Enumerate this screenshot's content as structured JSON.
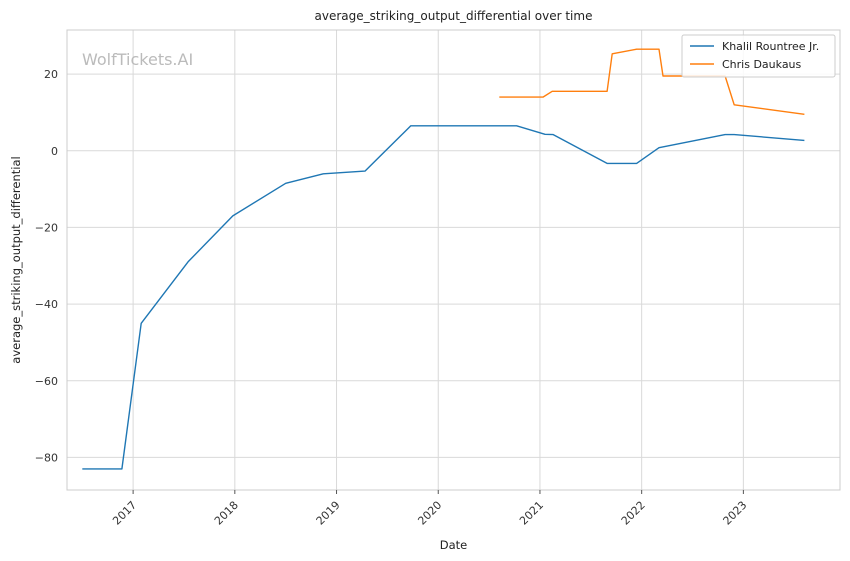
{
  "chart_data": {
    "type": "line",
    "title": "average_striking_output_differential over time",
    "xlabel": "Date",
    "ylabel": "average_striking_output_differential",
    "watermark": "WolfTickets.AI",
    "xlim": [
      2016.35,
      2023.95
    ],
    "ylim": [
      -88.5,
      31.5
    ],
    "x_ticks": [
      {
        "value": 2017,
        "label": "2017"
      },
      {
        "value": 2018,
        "label": "2018"
      },
      {
        "value": 2019,
        "label": "2019"
      },
      {
        "value": 2020,
        "label": "2020"
      },
      {
        "value": 2021,
        "label": "2021"
      },
      {
        "value": 2022,
        "label": "2022"
      },
      {
        "value": 2023,
        "label": "2023"
      }
    ],
    "y_ticks": [
      {
        "value": 20,
        "label": "20"
      },
      {
        "value": 0,
        "label": "0"
      },
      {
        "value": -20,
        "label": "−20"
      },
      {
        "value": -40,
        "label": "−40"
      },
      {
        "value": -60,
        "label": "−60"
      },
      {
        "value": -80,
        "label": "−80"
      }
    ],
    "grid": true,
    "legend_position": "top-right",
    "series": [
      {
        "name": "Khalil Rountree Jr.",
        "color": "#1f77b4",
        "x": [
          2016.5,
          2016.89,
          2017.08,
          2017.54,
          2017.98,
          2018.5,
          2018.87,
          2019.28,
          2019.73,
          2020.77,
          2021.05,
          2021.13,
          2021.66,
          2021.95,
          2022.17,
          2022.82,
          2022.91,
          2023.6
        ],
        "y": [
          -83,
          -83,
          -45,
          -29,
          -17,
          -8.5,
          -6,
          -5.3,
          6.5,
          6.5,
          4.3,
          4.2,
          -3.3,
          -3.3,
          0.8,
          4.2,
          4.2,
          2.7
        ]
      },
      {
        "name": "Chris Daukaus",
        "color": "#ff7f0e",
        "x": [
          2020.6,
          2021.03,
          2021.12,
          2021.66,
          2021.71,
          2021.95,
          2022.17,
          2022.21,
          2022.82,
          2022.91,
          2023.6
        ],
        "y": [
          14,
          14,
          15.5,
          15.5,
          25.3,
          26.5,
          26.5,
          19.5,
          19.5,
          12,
          9.5
        ]
      }
    ]
  }
}
